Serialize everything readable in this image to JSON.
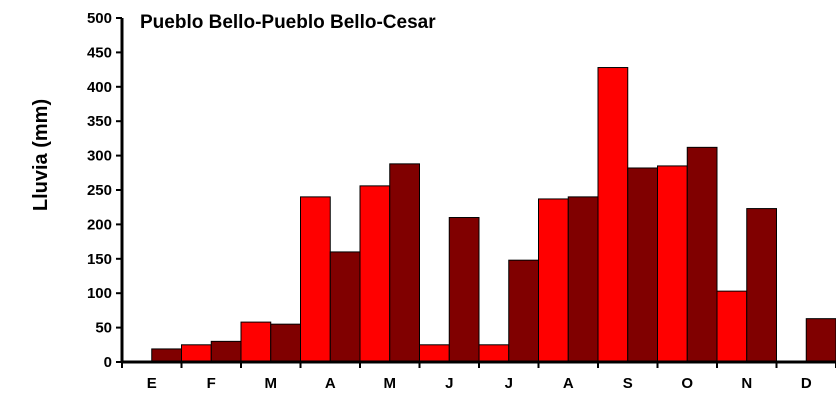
{
  "chart_data": {
    "type": "bar",
    "title": "Pueblo Bello-Pueblo Bello-Cesar",
    "xlabel": "",
    "ylabel": "Lluvia (mm)",
    "ylim": [
      0,
      500
    ],
    "yticks": [
      0,
      50,
      100,
      150,
      200,
      250,
      300,
      350,
      400,
      450,
      500
    ],
    "categories": [
      "E",
      "F",
      "M",
      "A",
      "M",
      "J",
      "J",
      "A",
      "S",
      "O",
      "N",
      "D"
    ],
    "series": [
      {
        "color": "#ff0000",
        "values": [
          0,
          25,
          58,
          240,
          256,
          25,
          25,
          237,
          428,
          285,
          103,
          0
        ]
      },
      {
        "color": "#800000",
        "values": [
          19,
          30,
          55,
          160,
          288,
          210,
          148,
          240,
          282,
          312,
          223,
          63
        ]
      }
    ],
    "grid": false,
    "legend": "none"
  }
}
